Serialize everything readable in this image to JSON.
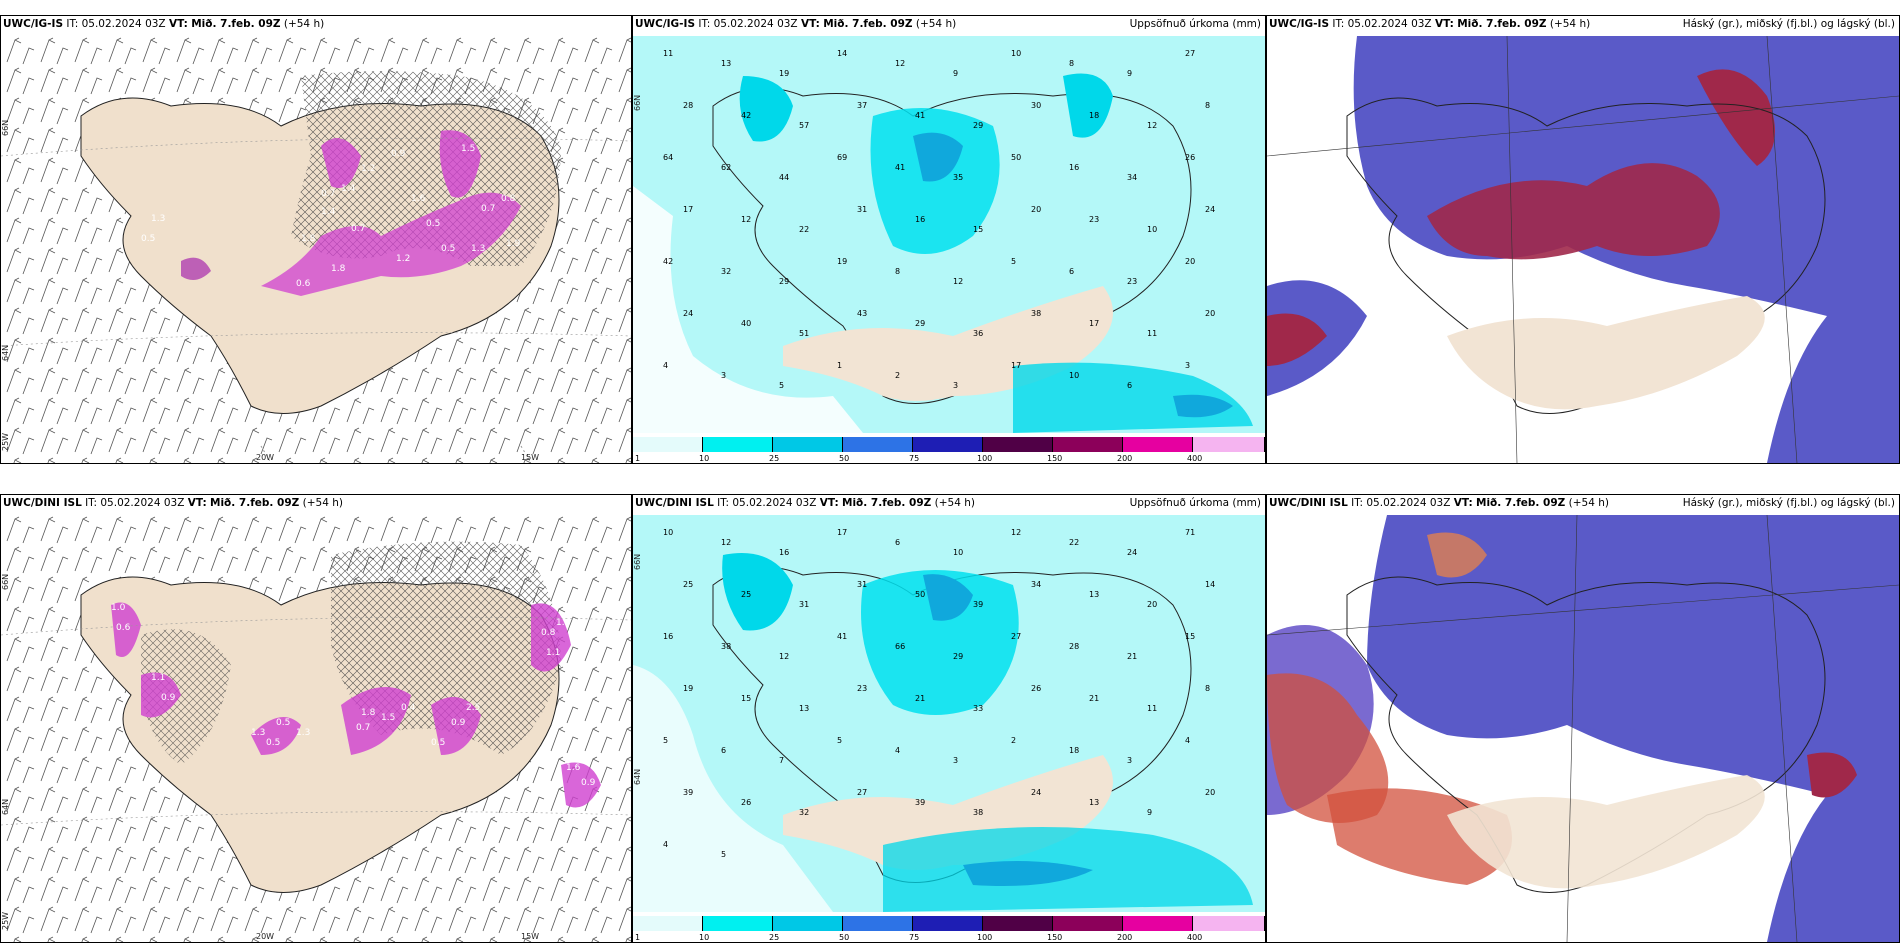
{
  "panels": [
    {
      "id": "p1",
      "model": "UWC/IG-IS",
      "it_label": "IT:",
      "it": "05.02.2024 03Z",
      "vt_label": "VT:",
      "vt": "Mið. 7.feb. 09Z",
      "lead": "(+54 h)",
      "title_right": "",
      "axis_labels": {
        "lon1": "20W",
        "lon2": "15W",
        "lat1": "66N",
        "lat2": "64N",
        "lat3": "25W"
      },
      "values": [
        "1.3",
        "0.5",
        "0.7",
        "1.4",
        "1.2",
        "1.8",
        "1.4",
        "0.7",
        "0.6",
        "1.8",
        "1.6",
        "0.5",
        "0.5",
        "1.3",
        "0.7",
        "0.9",
        "1.5",
        "0.8",
        "1.9",
        "1.2"
      ]
    },
    {
      "id": "p2",
      "model": "UWC/IG-IS",
      "it_label": "IT:",
      "it": "05.02.2024 03Z",
      "vt_label": "VT:",
      "vt": "Mið. 7.feb. 09Z",
      "lead": "(+54 h)",
      "title_right": "Uppsöfnuð úrkoma (mm)",
      "axis_labels": {
        "lat1": "66N"
      },
      "values": [
        "11",
        "13",
        "19",
        "14",
        "12",
        "9",
        "10",
        "8",
        "9",
        "27",
        "28",
        "42",
        "57",
        "37",
        "41",
        "29",
        "30",
        "18",
        "12",
        "8",
        "64",
        "62",
        "44",
        "69",
        "41",
        "35",
        "50",
        "16",
        "34",
        "26",
        "17",
        "12",
        "22",
        "31",
        "16",
        "15",
        "20",
        "23",
        "10",
        "24",
        "42",
        "32",
        "29",
        "19",
        "8",
        "12",
        "5",
        "6",
        "23",
        "20",
        "24",
        "40",
        "51",
        "43",
        "29",
        "36",
        "38",
        "17",
        "11",
        "20",
        "4",
        "3",
        "5",
        "1",
        "2",
        "3",
        "17",
        "10",
        "6",
        "3"
      ],
      "colorbar": {
        "ticks": [
          "1",
          "10",
          "25",
          "50",
          "75",
          "100",
          "150",
          "200",
          "400"
        ],
        "colors": [
          "#e4fbfb",
          "#00f0f0",
          "#00c8e6",
          "#2d73e6",
          "#1e1eb4",
          "#500046",
          "#8c005a",
          "#e600a0",
          "#f5b4f0"
        ]
      }
    },
    {
      "id": "p3",
      "model": "UWC/IG-IS",
      "it_label": "IT:",
      "it": "05.02.2024 03Z",
      "vt_label": "VT:",
      "vt": "Mið. 7.feb. 09Z",
      "lead": "(+54 h)",
      "title_right": "Háský (gr.), miðský (fj.bl.) og lágský (bl.)",
      "colors": {
        "high": "#a0a0a0",
        "mid": "#b4325a",
        "low": "#3c3cc8"
      }
    },
    {
      "id": "p4",
      "model": "UWC/DINI ISL",
      "it_label": "IT:",
      "it": "05.02.2024 03Z",
      "vt_label": "VT:",
      "vt": "Mið. 7.feb. 09Z",
      "lead": "(+54 h)",
      "title_right": "",
      "axis_labels": {
        "lon1": "20W",
        "lon2": "15W",
        "lat1": "66N",
        "lat2": "64N",
        "lat3": "25W"
      },
      "values": [
        "1.0",
        "0.6",
        "1.1",
        "0.9",
        "1.3",
        "0.5",
        "0.5",
        "1.3",
        "1.8",
        "0.7",
        "1.5",
        "0.4",
        "0.9",
        "2.5",
        "0.8",
        "1.1",
        "1.6",
        "0.9",
        "1.6",
        "0.5"
      ]
    },
    {
      "id": "p5",
      "model": "UWC/DINI ISL",
      "it_label": "IT:",
      "it": "05.02.2024 03Z",
      "vt_label": "VT:",
      "vt": "Mið. 7.feb. 09Z",
      "lead": "(+54 h)",
      "title_right": "Uppsöfnuð úrkoma (mm)",
      "axis_labels": {
        "lat1": "66N",
        "lat2": "64N"
      },
      "values": [
        "10",
        "12",
        "16",
        "17",
        "6",
        "10",
        "12",
        "22",
        "24",
        "71",
        "25",
        "25",
        "31",
        "31",
        "50",
        "39",
        "34",
        "13",
        "20",
        "14",
        "16",
        "38",
        "12",
        "41",
        "66",
        "29",
        "27",
        "28",
        "21",
        "15",
        "19",
        "15",
        "13",
        "23",
        "21",
        "33",
        "26",
        "21",
        "11",
        "8",
        "5",
        "6",
        "7",
        "5",
        "4",
        "3",
        "2",
        "18",
        "3",
        "4",
        "39",
        "26",
        "32",
        "27",
        "39",
        "38",
        "24",
        "13",
        "9",
        "20",
        "4",
        "5"
      ],
      "colorbar": {
        "ticks": [
          "1",
          "10",
          "25",
          "50",
          "75",
          "100",
          "150",
          "200",
          "400"
        ],
        "colors": [
          "#e4fbfb",
          "#00f0f0",
          "#00c8e6",
          "#2d73e6",
          "#1e1eb4",
          "#500046",
          "#8c005a",
          "#e600a0",
          "#f5b4f0"
        ]
      }
    },
    {
      "id": "p6",
      "model": "UWC/DINI ISL",
      "it_label": "IT:",
      "it": "05.02.2024 03Z",
      "vt_label": "VT:",
      "vt": "Mið. 7.feb. 09Z",
      "lead": "(+54 h)",
      "title_right": "Háský (gr.), miðský (fj.bl.) og lágský (bl.)",
      "colors": {
        "high": "#a0a0a0",
        "mid": "#d2503c",
        "low": "#3c3cc8"
      }
    }
  ]
}
